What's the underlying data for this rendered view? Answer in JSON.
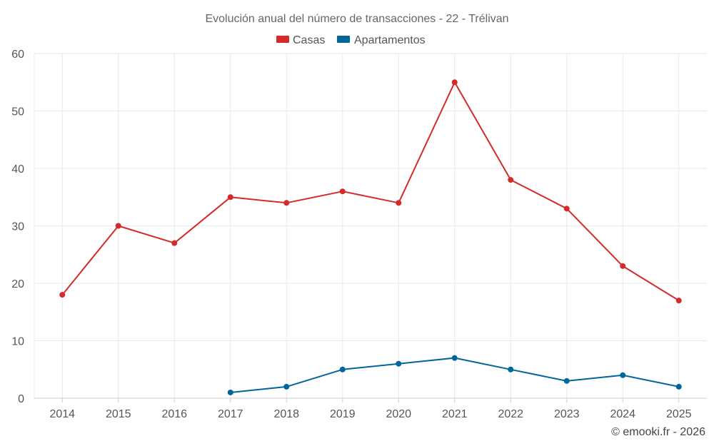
{
  "chart_data": {
    "type": "line",
    "title": "Evolución anual del número de transacciones - 22 - Trélivan",
    "categories": [
      "2014",
      "2015",
      "2016",
      "2017",
      "2018",
      "2019",
      "2020",
      "2021",
      "2022",
      "2023",
      "2024",
      "2025"
    ],
    "ylim": [
      0,
      60
    ],
    "yticks": [
      0,
      10,
      20,
      30,
      40,
      50,
      60
    ],
    "grid": true,
    "legend_position": "top-center",
    "series": [
      {
        "name": "Casas",
        "color": "#d42a2a",
        "values": [
          18,
          30,
          27,
          35,
          34,
          36,
          34,
          55,
          38,
          33,
          23,
          17
        ]
      },
      {
        "name": "Apartamentos",
        "color": "#006699",
        "values": [
          null,
          null,
          null,
          1,
          2,
          5,
          6,
          7,
          5,
          3,
          4,
          2
        ]
      }
    ],
    "credit": "© emooki.fr - 2026"
  }
}
